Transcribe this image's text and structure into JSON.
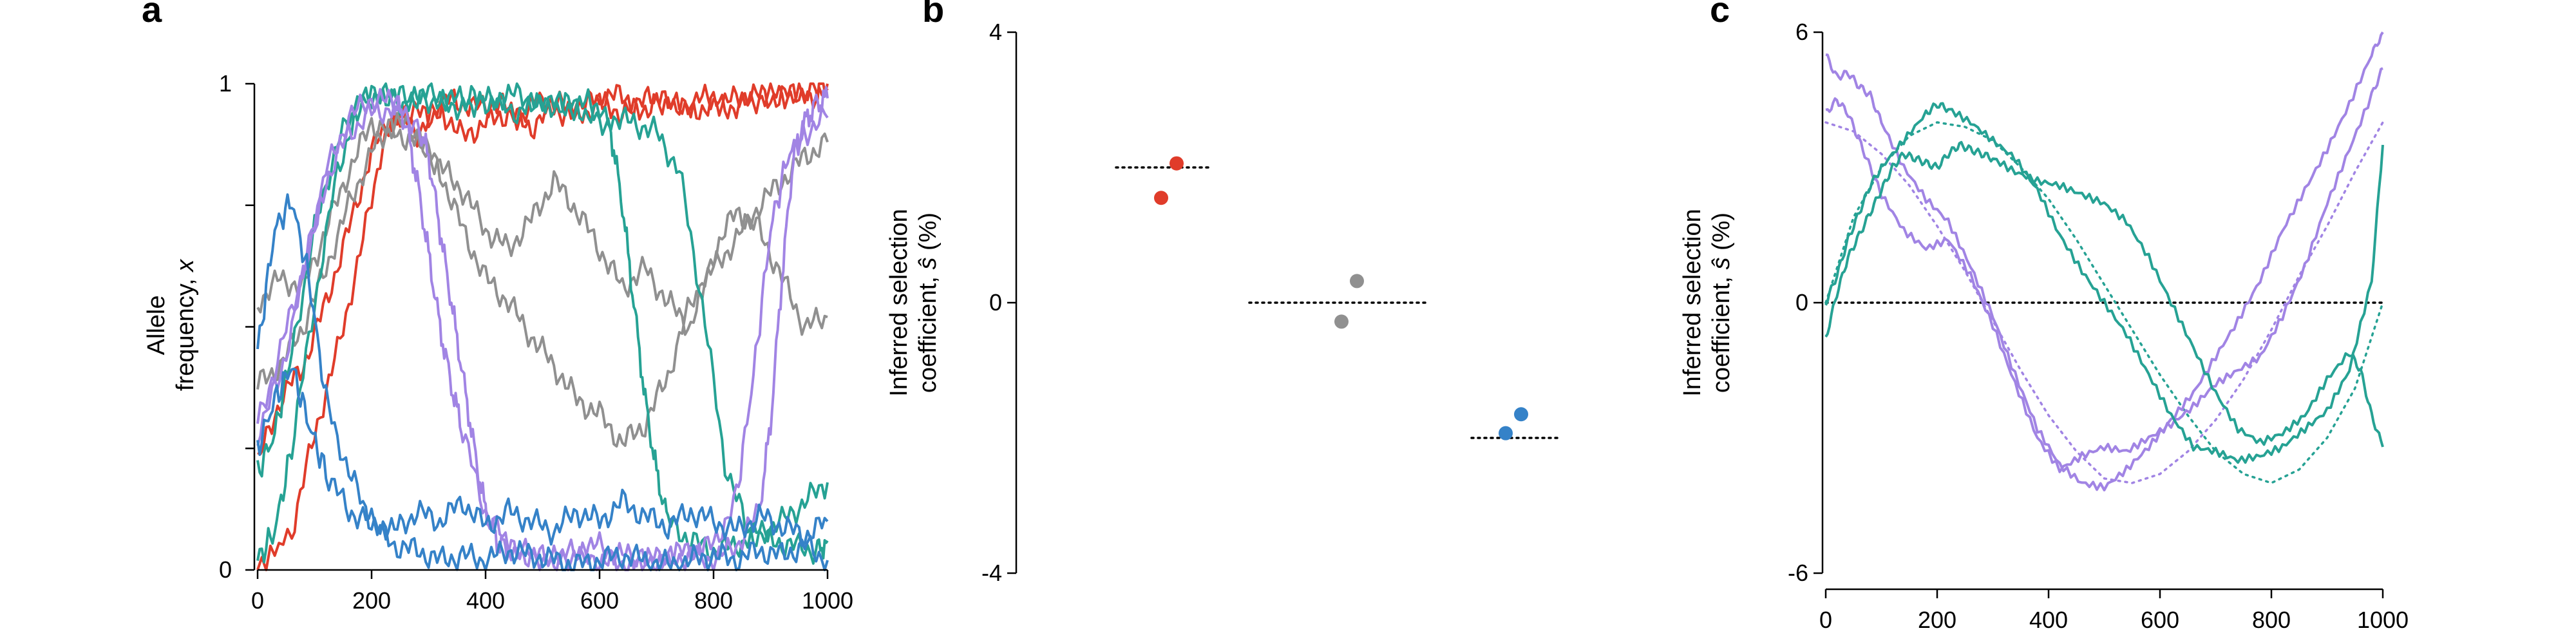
{
  "colors": {
    "red": "#e03c2a",
    "grey": "#909090",
    "teal": "#26a294",
    "purple": "#a184e4",
    "blue": "#3582c8"
  },
  "chart_data": [
    {
      "id": "a",
      "type": "line",
      "panel_letter": "a",
      "ylabel_line1": "Allele",
      "ylabel_line2": "frequency, ",
      "ylabel_var": "x",
      "xlim": [
        0,
        1000
      ],
      "ylim": [
        0,
        1
      ],
      "xticks": [
        0,
        200,
        400,
        600,
        800,
        1000
      ],
      "yticks": [
        0,
        1
      ],
      "yticklabels": [
        "0",
        "1"
      ],
      "series": [
        {
          "color": "red",
          "x": [
            0,
            60,
            100,
            140,
            180,
            220,
            260,
            300,
            340,
            380,
            420,
            460,
            500,
            540,
            580,
            620,
            660,
            700,
            740,
            780,
            820,
            860,
            900,
            940,
            980,
            1000
          ],
          "y": [
            0,
            0.08,
            0.28,
            0.45,
            0.65,
            0.88,
            0.95,
            0.93,
            0.97,
            0.95,
            0.96,
            0.93,
            0.97,
            0.95,
            0.96,
            0.98,
            0.96,
            0.97,
            0.95,
            0.97,
            0.96,
            0.98,
            0.97,
            0.98,
            0.99,
            1.0
          ]
        },
        {
          "color": "red",
          "x": [
            0,
            40,
            80,
            120,
            160,
            200,
            240,
            280,
            320,
            360,
            400,
            440,
            480,
            520,
            560,
            600,
            640,
            680,
            720,
            760,
            800,
            840,
            880,
            920,
            960,
            1000
          ],
          "y": [
            0.22,
            0.35,
            0.42,
            0.55,
            0.7,
            0.86,
            0.94,
            0.9,
            0.95,
            0.89,
            0.92,
            0.94,
            0.91,
            0.95,
            0.93,
            0.96,
            0.94,
            0.95,
            0.97,
            0.94,
            0.96,
            0.95,
            0.97,
            0.98,
            0.97,
            0.99
          ]
        },
        {
          "color": "grey",
          "x": [
            0,
            40,
            80,
            120,
            160,
            200,
            240,
            280,
            320,
            360,
            400,
            440,
            480,
            520,
            560,
            600,
            640,
            680,
            720,
            760,
            800,
            840,
            880,
            920,
            960,
            1000
          ],
          "y": [
            0.55,
            0.6,
            0.58,
            0.7,
            0.82,
            0.92,
            0.9,
            0.88,
            0.83,
            0.78,
            0.7,
            0.66,
            0.72,
            0.8,
            0.74,
            0.66,
            0.58,
            0.62,
            0.55,
            0.5,
            0.65,
            0.74,
            0.7,
            0.6,
            0.5,
            0.52
          ]
        },
        {
          "color": "grey",
          "x": [
            0,
            40,
            80,
            120,
            160,
            200,
            240,
            280,
            320,
            360,
            400,
            440,
            480,
            520,
            560,
            600,
            640,
            680,
            720,
            760,
            800,
            840,
            880,
            920,
            960,
            1000
          ],
          "y": [
            0.38,
            0.42,
            0.5,
            0.62,
            0.75,
            0.86,
            0.92,
            0.9,
            0.82,
            0.7,
            0.6,
            0.55,
            0.48,
            0.42,
            0.35,
            0.32,
            0.26,
            0.3,
            0.4,
            0.55,
            0.62,
            0.68,
            0.75,
            0.8,
            0.85,
            0.88
          ]
        },
        {
          "color": "teal",
          "x": [
            0,
            30,
            60,
            100,
            140,
            180,
            220,
            260,
            300,
            340,
            380,
            420,
            460,
            500,
            540,
            580,
            620,
            640,
            660,
            680,
            700,
            720,
            760,
            800,
            840,
            880,
            920,
            960,
            1000
          ],
          "y": [
            0.02,
            0.08,
            0.25,
            0.55,
            0.82,
            0.97,
            0.98,
            0.96,
            0.97,
            0.95,
            0.97,
            0.96,
            0.94,
            0.97,
            0.95,
            0.96,
            0.9,
            0.75,
            0.55,
            0.35,
            0.2,
            0.1,
            0.06,
            0.04,
            0.05,
            0.08,
            0.1,
            0.14,
            0.18
          ]
        },
        {
          "color": "teal",
          "x": [
            0,
            30,
            60,
            100,
            140,
            180,
            220,
            260,
            300,
            340,
            380,
            420,
            460,
            500,
            540,
            580,
            620,
            660,
            700,
            740,
            780,
            820,
            860,
            900,
            940,
            980,
            1000
          ],
          "y": [
            0.2,
            0.28,
            0.45,
            0.7,
            0.88,
            0.96,
            0.98,
            0.97,
            0.98,
            0.97,
            0.96,
            0.97,
            0.98,
            0.95,
            0.96,
            0.94,
            0.93,
            0.92,
            0.9,
            0.82,
            0.55,
            0.22,
            0.08,
            0.06,
            0.05,
            0.04,
            0.06
          ]
        },
        {
          "color": "purple",
          "x": [
            0,
            40,
            80,
            120,
            160,
            200,
            240,
            260,
            280,
            300,
            320,
            340,
            360,
            400,
            440,
            480,
            520,
            560,
            600,
            640,
            680,
            720,
            760,
            800,
            840,
            880,
            900,
            920,
            940,
            960,
            980,
            1000
          ],
          "y": [
            0.28,
            0.4,
            0.6,
            0.82,
            0.93,
            0.97,
            0.96,
            0.92,
            0.8,
            0.65,
            0.5,
            0.38,
            0.28,
            0.12,
            0.05,
            0.03,
            0.02,
            0.03,
            0.02,
            0.01,
            0.02,
            0.02,
            0.03,
            0.02,
            0.05,
            0.12,
            0.3,
            0.6,
            0.85,
            0.92,
            0.96,
            0.97
          ]
        },
        {
          "color": "purple",
          "x": [
            0,
            40,
            80,
            120,
            160,
            200,
            240,
            280,
            300,
            320,
            340,
            360,
            380,
            400,
            420,
            440,
            480,
            520,
            560,
            600,
            640,
            680,
            720,
            760,
            800,
            840,
            870,
            900,
            930,
            960,
            1000
          ],
          "y": [
            0.3,
            0.45,
            0.62,
            0.8,
            0.9,
            0.94,
            0.95,
            0.92,
            0.85,
            0.7,
            0.55,
            0.4,
            0.25,
            0.12,
            0.06,
            0.04,
            0.03,
            0.02,
            0.04,
            0.05,
            0.03,
            0.02,
            0.03,
            0.04,
            0.05,
            0.15,
            0.4,
            0.7,
            0.85,
            0.9,
            0.93
          ]
        },
        {
          "color": "blue",
          "x": [
            0,
            30,
            60,
            90,
            120,
            160,
            200,
            240,
            280,
            320,
            360,
            400,
            440,
            480,
            520,
            560,
            600,
            640,
            680,
            720,
            760,
            800,
            840,
            880,
            920,
            960,
            1000
          ],
          "y": [
            0.45,
            0.7,
            0.76,
            0.6,
            0.35,
            0.2,
            0.1,
            0.05,
            0.04,
            0.02,
            0.03,
            0.02,
            0.04,
            0.03,
            0.02,
            0.01,
            0.02,
            0.03,
            0.02,
            0.01,
            0.02,
            0.03,
            0.02,
            0.04,
            0.03,
            0.05,
            0.02
          ]
        },
        {
          "color": "blue",
          "x": [
            0,
            30,
            60,
            90,
            120,
            160,
            200,
            240,
            280,
            320,
            360,
            400,
            440,
            480,
            520,
            560,
            600,
            640,
            680,
            720,
            760,
            800,
            840,
            880,
            920,
            960,
            1000
          ],
          "y": [
            0.25,
            0.35,
            0.42,
            0.3,
            0.2,
            0.12,
            0.1,
            0.08,
            0.12,
            0.1,
            0.14,
            0.09,
            0.12,
            0.1,
            0.08,
            0.12,
            0.1,
            0.14,
            0.11,
            0.09,
            0.12,
            0.1,
            0.08,
            0.11,
            0.09,
            0.07,
            0.1
          ]
        }
      ]
    },
    {
      "id": "b",
      "type": "scatter",
      "panel_letter": "b",
      "ylabel_line1": "Inferred selection",
      "ylabel_line2_pre": "coefficient, ",
      "ylabel_var": "ŝ",
      "ylabel_line2_post": " (%)",
      "ylim": [
        -4,
        4
      ],
      "yticks": [
        -4,
        0,
        4
      ],
      "yticklabels": [
        "-4",
        "0",
        "4"
      ],
      "groups": [
        {
          "color": "red",
          "true_value": 2,
          "points": [
            2.06,
            1.55
          ]
        },
        {
          "color": "grey",
          "true_value": 0,
          "points": [
            0.32,
            -0.28
          ]
        },
        {
          "color": "blue",
          "true_value": -2,
          "points": [
            -1.65,
            -1.93
          ]
        }
      ]
    },
    {
      "id": "c",
      "type": "line",
      "panel_letter": "c",
      "ylabel_line1": "Inferred selection",
      "ylabel_line2_pre": "coefficient, ",
      "ylabel_var": "ŝ",
      "ylabel_line2_post": " (%)",
      "xlim": [
        0,
        1000
      ],
      "ylim": [
        -6,
        6
      ],
      "xticks": [
        0,
        200,
        400,
        600,
        800,
        1000
      ],
      "yticks": [
        -6,
        0,
        6
      ],
      "yticklabels": [
        "-6",
        "0",
        "6"
      ],
      "true_curves": [
        {
          "color": "purple",
          "x": [
            0,
            50,
            100,
            150,
            200,
            250,
            300,
            350,
            400,
            450,
            500,
            550,
            600,
            650,
            700,
            750,
            800,
            850,
            900,
            950,
            1000
          ],
          "y": [
            4,
            3.8,
            3.3,
            2.6,
            1.7,
            0.7,
            -0.4,
            -1.5,
            -2.5,
            -3.3,
            -3.9,
            -4,
            -3.8,
            -3.3,
            -2.6,
            -1.7,
            -0.6,
            0.6,
            1.7,
            2.9,
            4
          ]
        },
        {
          "color": "teal",
          "x": [
            0,
            50,
            100,
            150,
            200,
            250,
            300,
            350,
            400,
            450,
            500,
            550,
            600,
            650,
            700,
            750,
            800,
            850,
            900,
            950,
            1000
          ],
          "y": [
            0,
            1.9,
            3,
            3.7,
            4,
            3.9,
            3.6,
            3,
            2.3,
            1.4,
            0.4,
            -0.6,
            -1.6,
            -2.5,
            -3.3,
            -3.8,
            -4,
            -3.7,
            -3,
            -1.9,
            0
          ]
        }
      ],
      "series": [
        {
          "color": "purple",
          "x": [
            0,
            20,
            40,
            60,
            80,
            100,
            140,
            180,
            220,
            260,
            300,
            340,
            380,
            420,
            460,
            500,
            540,
            580,
            620,
            660,
            700,
            740,
            780,
            820,
            860,
            900,
            940,
            980,
            1000
          ],
          "y": [
            5.5,
            5,
            5.1,
            4.8,
            4.6,
            4,
            3,
            2.3,
            1.8,
            0.8,
            -0.3,
            -1.6,
            -2.8,
            -3.6,
            -4,
            -4.1,
            -3.7,
            -3.2,
            -2.6,
            -2,
            -1.2,
            -0.4,
            0.5,
            1.6,
            2.5,
            3.4,
            4.4,
            5.5,
            6
          ]
        },
        {
          "color": "purple",
          "x": [
            0,
            20,
            40,
            60,
            80,
            100,
            140,
            180,
            220,
            260,
            300,
            340,
            380,
            420,
            460,
            500,
            540,
            580,
            620,
            660,
            700,
            740,
            780,
            820,
            860,
            900,
            940,
            980,
            1000
          ],
          "y": [
            4.2,
            4.5,
            4.2,
            3.6,
            3,
            2.4,
            1.6,
            1.2,
            1.4,
            0.6,
            -0.5,
            -1.8,
            -3,
            -3.7,
            -3.4,
            -3.2,
            -3.3,
            -3,
            -2.7,
            -2.3,
            -1.8,
            -1.5,
            -1.2,
            -0.3,
            0.8,
            2.2,
            3.4,
            4.6,
            5.2
          ]
        },
        {
          "color": "teal",
          "x": [
            0,
            20,
            40,
            60,
            80,
            100,
            120,
            140,
            160,
            180,
            200,
            220,
            240,
            260,
            280,
            300,
            340,
            380,
            420,
            460,
            500,
            540,
            580,
            620,
            660,
            700,
            740,
            780,
            820,
            860,
            900,
            940,
            960,
            980,
            1000
          ],
          "y": [
            -0.8,
            0.2,
            1,
            1.5,
            2,
            2.5,
            3,
            3.3,
            3.2,
            3.1,
            3,
            3.3,
            3.5,
            3.4,
            3.3,
            3.2,
            2.9,
            2.7,
            2.6,
            2.4,
            2.2,
            1.8,
            1,
            0,
            -1,
            -2,
            -2.8,
            -3.1,
            -2.9,
            -2.5,
            -1.7,
            -1.1,
            -1.5,
            -2.5,
            -3.2
          ]
        },
        {
          "color": "teal",
          "x": [
            0,
            20,
            40,
            60,
            80,
            100,
            140,
            180,
            200,
            220,
            260,
            300,
            340,
            380,
            420,
            460,
            500,
            540,
            580,
            620,
            660,
            700,
            740,
            780,
            820,
            860,
            900,
            940,
            980,
            1000
          ],
          "y": [
            0,
            0.6,
            1.4,
            2,
            2.6,
            3,
            3.6,
            4.2,
            4.4,
            4.3,
            4,
            3.6,
            3.2,
            2.5,
            1.5,
            0.7,
            0,
            -0.7,
            -1.6,
            -2.5,
            -3.2,
            -3.3,
            -3.5,
            -3.4,
            -3.2,
            -2.8,
            -2.4,
            -1.5,
            0.5,
            3.5
          ]
        }
      ]
    }
  ]
}
